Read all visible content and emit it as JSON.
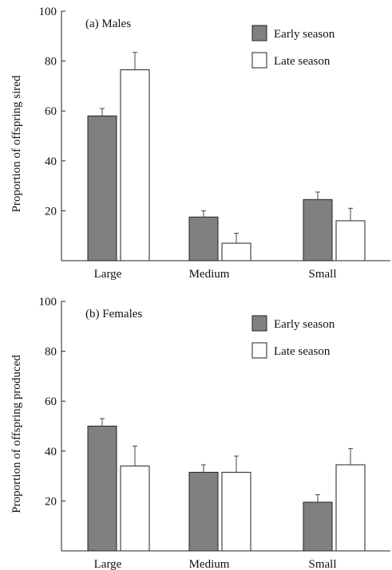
{
  "chart_data": [
    {
      "type": "bar",
      "title": "(a) Males",
      "ylabel": "Proportion of offspring sired",
      "xlabel": "",
      "categories": [
        "Large",
        "Medium",
        "Small"
      ],
      "ylim": [
        0,
        100
      ],
      "yticks": [
        20,
        40,
        60,
        80,
        100
      ],
      "legend_position": "top-right",
      "series": [
        {
          "name": "Early season",
          "color": "#808080",
          "values": [
            58,
            17.5,
            24.5
          ],
          "errors": [
            3,
            2.5,
            3
          ]
        },
        {
          "name": "Late season",
          "color": "#ffffff",
          "values": [
            76.5,
            7,
            16
          ],
          "errors": [
            7,
            4,
            5
          ]
        }
      ]
    },
    {
      "type": "bar",
      "title": "(b) Females",
      "ylabel": "Proportion of offspring produced",
      "xlabel": "",
      "categories": [
        "Large",
        "Medium",
        "Small"
      ],
      "ylim": [
        0,
        100
      ],
      "yticks": [
        20,
        40,
        60,
        80,
        100
      ],
      "legend_position": "top-right",
      "series": [
        {
          "name": "Early season",
          "color": "#808080",
          "values": [
            50,
            31.5,
            19.5
          ],
          "errors": [
            3,
            3,
            3
          ]
        },
        {
          "name": "Late season",
          "color": "#ffffff",
          "values": [
            34,
            31.5,
            34.5
          ],
          "errors": [
            8,
            6.5,
            6.5
          ]
        }
      ]
    }
  ]
}
